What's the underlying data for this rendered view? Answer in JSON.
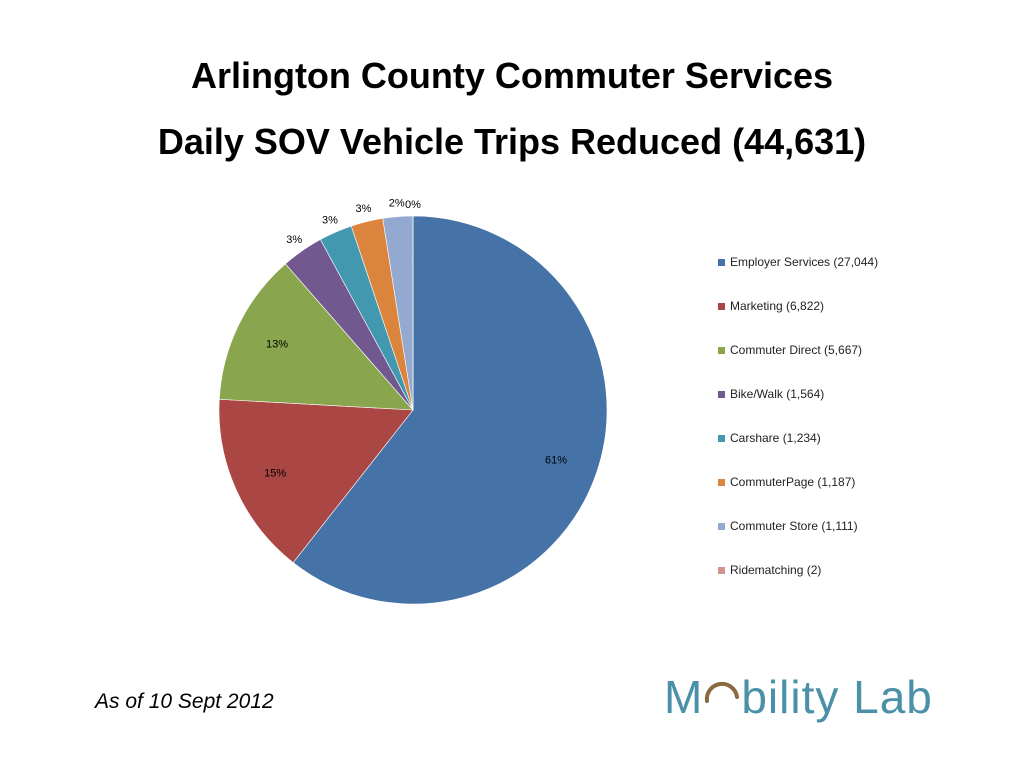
{
  "header": {
    "title": "Arlington County Commuter Services",
    "subtitle": "Daily SOV Vehicle Trips Reduced (44,631)"
  },
  "footer": {
    "note": "As of 10 Sept 2012",
    "logo_text_left": "M",
    "logo_text_right": "bility Lab"
  },
  "chart_data": {
    "type": "pie",
    "title": "Daily SOV Vehicle Trips Reduced (44,631)",
    "legend_position": "right",
    "slices": [
      {
        "label": "Employer Services (27,044)",
        "value": 27044,
        "pct_label": "61%",
        "color": "#4572a7"
      },
      {
        "label": "Marketing (6,822)",
        "value": 6822,
        "pct_label": "15%",
        "color": "#aa4643"
      },
      {
        "label": "Commuter Direct (5,667)",
        "value": 5667,
        "pct_label": "13%",
        "color": "#89a54e"
      },
      {
        "label": "Bike/Walk (1,564)",
        "value": 1564,
        "pct_label": "3%",
        "color": "#71588f"
      },
      {
        "label": "Carshare (1,234)",
        "value": 1234,
        "pct_label": "3%",
        "color": "#4198af"
      },
      {
        "label": "CommuterPage (1,187)",
        "value": 1187,
        "pct_label": "3%",
        "color": "#db843d"
      },
      {
        "label": "Commuter Store (1,111)",
        "value": 1111,
        "pct_label": "2%",
        "color": "#93a9cf"
      },
      {
        "label": "Ridematching (2)",
        "value": 2,
        "pct_label": "0%",
        "color": "#d19392"
      }
    ]
  },
  "colors": {
    "logo_text": "#4a90a8",
    "logo_arc": "#8b6a3e"
  }
}
